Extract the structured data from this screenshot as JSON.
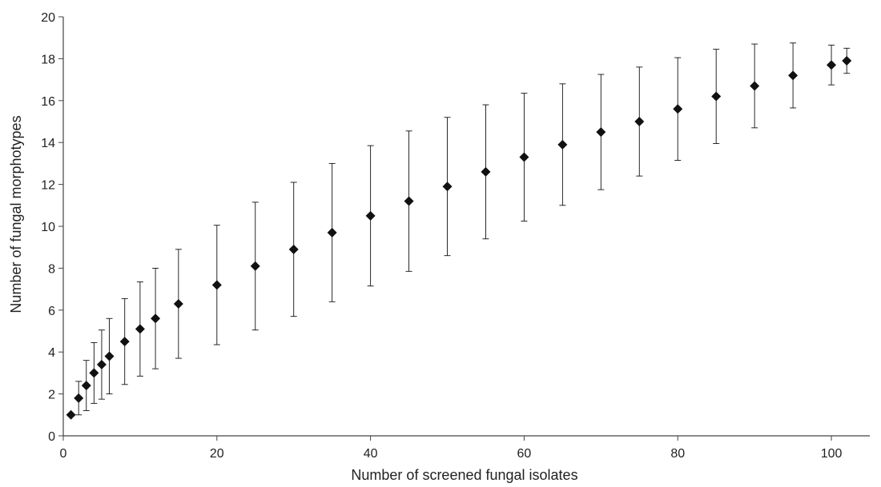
{
  "chart_data": {
    "type": "scatter",
    "title": "",
    "xlabel": "Number of screened fungal isolates",
    "ylabel": "Number of fungal morphotypes",
    "xlim": [
      0,
      105
    ],
    "ylim": [
      0,
      20
    ],
    "x_ticks": [
      "0",
      "20",
      "40",
      "60",
      "80",
      "100"
    ],
    "y_ticks": [
      "0",
      "2",
      "4",
      "6",
      "8",
      "10",
      "12",
      "14",
      "16",
      "18",
      "20"
    ],
    "grid": false,
    "legend": "none",
    "series": [
      {
        "marker": "diamond",
        "color": "#111111",
        "error_bars": "symmetric",
        "points": [
          {
            "x": 1,
            "y": 1.0,
            "err": 0.0
          },
          {
            "x": 2,
            "y": 1.8,
            "err": 0.8
          },
          {
            "x": 3,
            "y": 2.4,
            "err": 1.2
          },
          {
            "x": 4,
            "y": 3.0,
            "err": 1.45
          },
          {
            "x": 5,
            "y": 3.4,
            "err": 1.65
          },
          {
            "x": 6,
            "y": 3.8,
            "err": 1.8
          },
          {
            "x": 8,
            "y": 4.5,
            "err": 2.05
          },
          {
            "x": 10,
            "y": 5.1,
            "err": 2.25
          },
          {
            "x": 12,
            "y": 5.6,
            "err": 2.4
          },
          {
            "x": 15,
            "y": 6.3,
            "err": 2.6
          },
          {
            "x": 20,
            "y": 7.2,
            "err": 2.85
          },
          {
            "x": 25,
            "y": 8.1,
            "err": 3.05
          },
          {
            "x": 30,
            "y": 8.9,
            "err": 3.2
          },
          {
            "x": 35,
            "y": 9.7,
            "err": 3.3
          },
          {
            "x": 40,
            "y": 10.5,
            "err": 3.35
          },
          {
            "x": 45,
            "y": 11.2,
            "err": 3.35
          },
          {
            "x": 50,
            "y": 11.9,
            "err": 3.3
          },
          {
            "x": 55,
            "y": 12.6,
            "err": 3.2
          },
          {
            "x": 60,
            "y": 13.3,
            "err": 3.05
          },
          {
            "x": 65,
            "y": 13.9,
            "err": 2.9
          },
          {
            "x": 70,
            "y": 14.5,
            "err": 2.75
          },
          {
            "x": 75,
            "y": 15.0,
            "err": 2.6
          },
          {
            "x": 80,
            "y": 15.6,
            "err": 2.45
          },
          {
            "x": 85,
            "y": 16.2,
            "err": 2.25
          },
          {
            "x": 90,
            "y": 16.7,
            "err": 2.0
          },
          {
            "x": 95,
            "y": 17.2,
            "err": 1.55
          },
          {
            "x": 100,
            "y": 17.7,
            "err": 0.95
          },
          {
            "x": 102,
            "y": 17.9,
            "err": 0.6
          }
        ]
      }
    ]
  }
}
